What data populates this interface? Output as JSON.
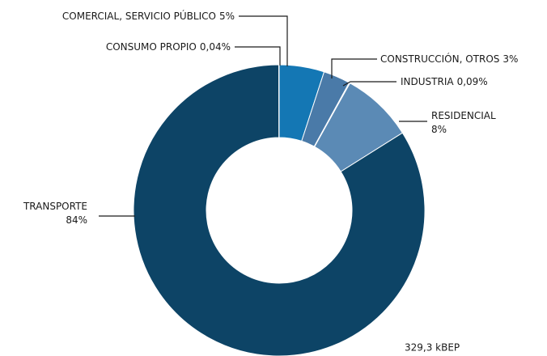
{
  "chart_data": {
    "type": "donut",
    "categories": [
      "COMERCIAL, SERVICIO PÚBLICO",
      "CONSTRUCCIÓN, OTROS",
      "INDUSTRIA",
      "RESIDENCIAL",
      "TRANSPORTE",
      "CONSUMO PROPIO"
    ],
    "values": [
      5,
      3,
      0.09,
      8,
      84,
      0.04
    ],
    "value_labels": [
      "5%",
      "3%",
      "0,09%",
      "8%",
      "84%",
      "0,04%"
    ],
    "colors": [
      "#1477b4",
      "#4a7aa8",
      "#6f9bc2",
      "#5b8ab5",
      "#0d4466",
      "#0d4466"
    ],
    "annotation": "329,3 kBEP"
  }
}
